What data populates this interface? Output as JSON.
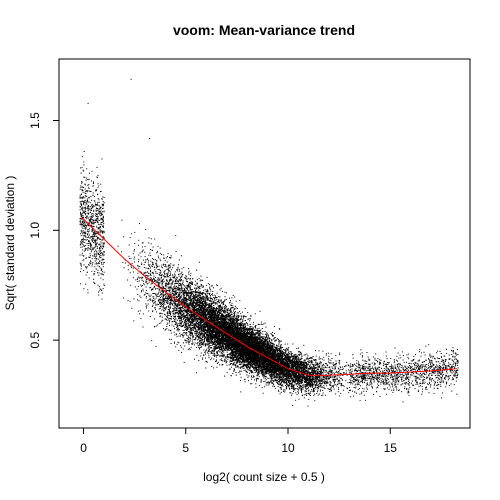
{
  "chart_data": {
    "type": "scatter",
    "title": "voom: Mean-variance trend",
    "xlabel": "log2( count size + 0.5 )",
    "ylabel": "Sqrt( standard deviation )",
    "xlim": [
      -1.2,
      18.9
    ],
    "ylim": [
      0.1,
      1.78
    ],
    "x_ticks": [
      0,
      5,
      10,
      15
    ],
    "y_ticks": [
      0.5,
      1.0,
      1.5
    ],
    "x_tick_labels": [
      "0",
      "5",
      "10",
      "15"
    ],
    "y_tick_labels": [
      "0.5",
      "1.0",
      "1.5"
    ],
    "grid": false,
    "legend": "none",
    "point_color": "#000000",
    "trend_color": "#ff0000",
    "trend": {
      "x": [
        -0.1,
        1,
        2,
        3,
        4,
        5,
        6,
        7,
        8,
        9,
        10,
        11,
        12,
        13,
        14,
        15,
        16,
        17,
        18.2
      ],
      "y": [
        1.06,
        0.96,
        0.87,
        0.79,
        0.72,
        0.65,
        0.59,
        0.53,
        0.47,
        0.42,
        0.37,
        0.34,
        0.34,
        0.345,
        0.35,
        0.35,
        0.355,
        0.36,
        0.37
      ]
    },
    "point_cloud": {
      "count": 16000,
      "x_range": [
        -0.2,
        18.3
      ],
      "dense_x_range": [
        1,
        14
      ],
      "notable_points": [
        {
          "x": 2.3,
          "y": 1.69
        },
        {
          "x": 0.2,
          "y": 1.58
        },
        {
          "x": 3.2,
          "y": 1.42
        },
        {
          "x": 0.0,
          "y": 1.3
        }
      ]
    }
  }
}
